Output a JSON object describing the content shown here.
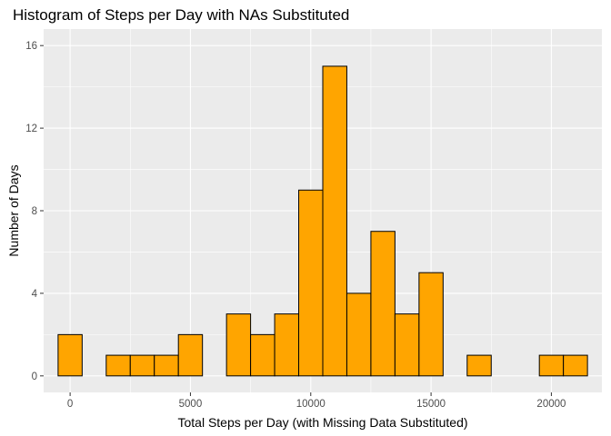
{
  "chart_data": {
    "type": "bar",
    "title": "Histogram of Steps per Day with NAs Substituted",
    "xlabel": "Total Steps per Day (with Missing Data Substituted)",
    "ylabel": "Number of Days",
    "xlim": [
      -1100,
      22100
    ],
    "ylim": [
      -0.8,
      16.8
    ],
    "x_ticks": [
      0,
      5000,
      10000,
      15000,
      20000
    ],
    "y_ticks": [
      0,
      4,
      8,
      12,
      16
    ],
    "bin_width": 1000,
    "bin_centers": [
      0,
      1000,
      2000,
      3000,
      4000,
      5000,
      6000,
      7000,
      8000,
      9000,
      10000,
      11000,
      12000,
      13000,
      14000,
      15000,
      16000,
      17000,
      18000,
      19000,
      20000,
      21000
    ],
    "values": [
      2,
      0,
      1,
      1,
      1,
      2,
      0,
      3,
      2,
      3,
      9,
      15,
      4,
      7,
      3,
      5,
      0,
      1,
      0,
      0,
      1,
      1
    ],
    "fill_color": "#ffa500",
    "outline_color": "#000000",
    "panel_color": "#ebebeb",
    "grid": true
  }
}
